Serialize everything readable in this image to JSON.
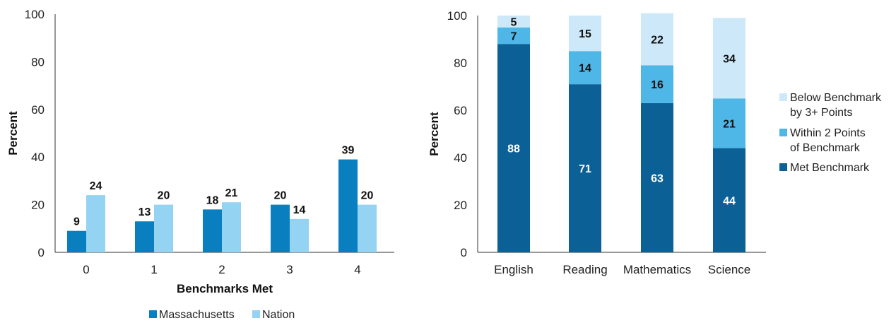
{
  "chart_data": [
    {
      "type": "bar",
      "xlabel": "Benchmarks Met",
      "ylabel": "Percent",
      "ylim": [
        0,
        100
      ],
      "yticks": [
        0,
        20,
        40,
        60,
        80,
        100
      ],
      "categories": [
        "0",
        "1",
        "2",
        "3",
        "4"
      ],
      "legend_position": "bottom",
      "series": [
        {
          "name": "Massachusetts",
          "color": "#0a7fc0",
          "values": [
            9,
            13,
            18,
            20,
            39
          ]
        },
        {
          "name": "Nation",
          "color": "#94d3f1",
          "values": [
            24,
            20,
            21,
            14,
            20
          ]
        }
      ]
    },
    {
      "type": "bar",
      "stacked": true,
      "ylabel": "Percent",
      "ylim": [
        0,
        100
      ],
      "yticks": [
        0,
        20,
        40,
        60,
        80,
        100
      ],
      "categories": [
        "English",
        "Reading",
        "Mathematics",
        "Science"
      ],
      "legend_position": "right",
      "series": [
        {
          "name": "Met Benchmark",
          "color": "#0b6096",
          "label_color": "#ffffff",
          "values": [
            88,
            71,
            63,
            44
          ]
        },
        {
          "name": "Within 2 Points of Benchmark",
          "legend_lines": [
            "Within 2 Points",
            "of Benchmark"
          ],
          "color": "#4fb6e8",
          "label_color": "#111111",
          "values": [
            7,
            14,
            16,
            21
          ]
        },
        {
          "name": "Below Benchmark by 3+ Points",
          "legend_lines": [
            "Below Benchmark",
            "by 3+ Points"
          ],
          "color": "#cde9f9",
          "label_color": "#111111",
          "values": [
            5,
            15,
            22,
            34
          ]
        }
      ]
    }
  ]
}
